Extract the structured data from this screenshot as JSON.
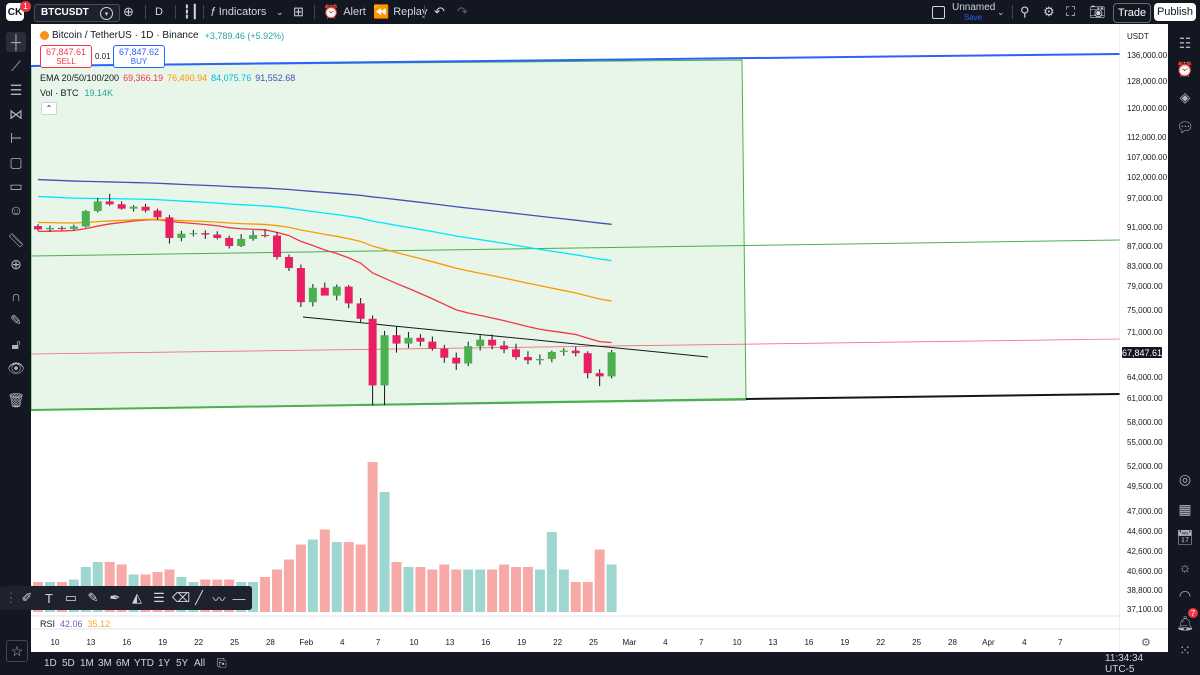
{
  "topbar": {
    "logo_text": "CK",
    "notification_count": "1",
    "symbol": "BTCUSDT",
    "interval": "D",
    "indicators_label": "Indicators",
    "alert_label": "Alert",
    "replay_label": "Replay",
    "layout_name": "Unnamed",
    "save_label": "Save",
    "trade_label": "Trade",
    "publish_label": "Publish"
  },
  "legend": {
    "title": "Bitcoin / TetherUS · 1D · Binance",
    "change": "+3,789.46 (+5.92%)",
    "sell_price": "67,847.61",
    "sell_label": "SELL",
    "spread": "0.01",
    "buy_price": "67,847.62",
    "buy_label": "BUY",
    "ema_label": "EMA 20/50/100/200",
    "ema20": "69,366.19",
    "ema50": "76,490.94",
    "ema100": "84,075.76",
    "ema200": "91,552.68",
    "vol_label": "Vol · BTC",
    "vol_value": "19.14K",
    "rsi_label": "RSI",
    "rsi_value": "42.06",
    "rsi_ma": "35.12"
  },
  "price_axis": {
    "currency": "USDT",
    "labels": [
      "136,000.00",
      "128,000.00",
      "120,000.00",
      "112,000.00",
      "107,000.00",
      "102,000.00",
      "97,000.00",
      "91,000.00",
      "87,000.00",
      "83,000.00",
      "79,000.00",
      "75,000.00",
      "71,000.00",
      "64,000.00",
      "61,000.00",
      "58,000.00",
      "55,000.00",
      "52,000.00",
      "49,500.00",
      "47,000.00",
      "44,600.00",
      "42,600.00",
      "40,600.00",
      "38,800.00",
      "37,100.00"
    ],
    "current_price": "67,847.61"
  },
  "time_axis": {
    "labels": [
      "10",
      "13",
      "16",
      "19",
      "22",
      "25",
      "28",
      "Feb",
      "4",
      "7",
      "10",
      "13",
      "16",
      "19",
      "22",
      "25",
      "Mar",
      "4",
      "7",
      "10",
      "13",
      "16",
      "19",
      "22",
      "25",
      "28",
      "Apr",
      "4",
      "7"
    ]
  },
  "bottombar": {
    "ranges": [
      "1D",
      "5D",
      "1M",
      "3M",
      "6M",
      "YTD",
      "1Y",
      "5Y",
      "All"
    ],
    "clock": "11:34:34 UTC-5"
  },
  "right_toolbar": {
    "alert_badge": "7"
  },
  "colors": {
    "up": "#26a69a",
    "down": "#f23645",
    "up_candle": "#4caf50",
    "down_candle": "#e91e63",
    "ema20": "#f23645",
    "ema50": "#ff9800",
    "ema100": "#00e5ff",
    "ema200": "#3f51b5",
    "box_fill": "#e8f5e9",
    "box_border": "#4caf50"
  },
  "chart_data": {
    "type": "candlestick",
    "symbol": "BTCUSDT",
    "interval": "1D",
    "ylim": [
      37100,
      136000
    ],
    "dates": [
      "Jan 8",
      "Jan 9",
      "Jan 10",
      "Jan 11",
      "Jan 12",
      "Jan 13",
      "Jan 14",
      "Jan 15",
      "Jan 16",
      "Jan 17",
      "Jan 18",
      "Jan 19",
      "Jan 20",
      "Jan 21",
      "Jan 22",
      "Jan 23",
      "Jan 24",
      "Jan 25",
      "Jan 26",
      "Jan 27",
      "Jan 28",
      "Jan 29",
      "Jan 30",
      "Jan 31",
      "Feb 1",
      "Feb 2",
      "Feb 3",
      "Feb 4",
      "Feb 5",
      "Feb 6",
      "Feb 7",
      "Feb 8",
      "Feb 9",
      "Feb 10",
      "Feb 11",
      "Feb 12",
      "Feb 13",
      "Feb 14",
      "Feb 15",
      "Feb 16",
      "Feb 17",
      "Feb 18",
      "Feb 19",
      "Feb 20",
      "Feb 21",
      "Feb 22",
      "Feb 23",
      "Feb 24",
      "Feb 25"
    ],
    "ohlc": [
      [
        91200,
        91600,
        90200,
        90500
      ],
      [
        90500,
        91300,
        90000,
        90800
      ],
      [
        90800,
        91200,
        90300,
        90600
      ],
      [
        90600,
        91500,
        90300,
        91100
      ],
      [
        91100,
        94500,
        90900,
        94300
      ],
      [
        94300,
        97000,
        94000,
        96300
      ],
      [
        96300,
        98000,
        95400,
        95700
      ],
      [
        95700,
        96300,
        94600,
        94800
      ],
      [
        94800,
        95500,
        94200,
        95200
      ],
      [
        95200,
        95800,
        94000,
        94400
      ],
      [
        94400,
        94800,
        92500,
        93000
      ],
      [
        93000,
        93500,
        87500,
        88700
      ],
      [
        88700,
        90200,
        88000,
        89600
      ],
      [
        89600,
        90400,
        89000,
        89700
      ],
      [
        89700,
        90300,
        88500,
        89400
      ],
      [
        89400,
        90100,
        88400,
        88700
      ],
      [
        88700,
        89200,
        86500,
        87000
      ],
      [
        87000,
        89500,
        86800,
        88500
      ],
      [
        88500,
        90300,
        88100,
        89300
      ],
      [
        89300,
        90500,
        88800,
        89200
      ],
      [
        89200,
        89900,
        84300,
        84800
      ],
      [
        84800,
        85300,
        82000,
        82600
      ],
      [
        82600,
        83300,
        75500,
        76300
      ],
      [
        76300,
        79400,
        75600,
        78700
      ],
      [
        78700,
        79700,
        77800,
        77400
      ],
      [
        77400,
        79300,
        76600,
        78900
      ],
      [
        78900,
        79200,
        75300,
        76100
      ],
      [
        76100,
        77000,
        72800,
        73400
      ],
      [
        73400,
        74000,
        60100,
        62800
      ],
      [
        62800,
        71200,
        60100,
        70500
      ],
      [
        70500,
        72000,
        67800,
        69200
      ],
      [
        69200,
        71000,
        68500,
        70100
      ],
      [
        70100,
        70700,
        68800,
        69500
      ],
      [
        69500,
        70300,
        68100,
        68400
      ],
      [
        68400,
        69000,
        66200,
        67000
      ],
      [
        67000,
        67800,
        65100,
        66100
      ],
      [
        66100,
        69500,
        65700,
        68800
      ],
      [
        68800,
        70500,
        68100,
        69800
      ],
      [
        69800,
        70600,
        68300,
        68900
      ],
      [
        68900,
        69600,
        67700,
        68300
      ],
      [
        68300,
        69200,
        66700,
        67100
      ],
      [
        67100,
        68000,
        66000,
        66600
      ],
      [
        66600,
        67500,
        65900,
        66800
      ],
      [
        66800,
        68100,
        66300,
        67900
      ],
      [
        67900,
        68500,
        67300,
        68100
      ],
      [
        68100,
        68700,
        67200,
        67700
      ],
      [
        67700,
        68000,
        63800,
        64600
      ],
      [
        64600,
        65200,
        62700,
        64100
      ],
      [
        64100,
        68200,
        63800,
        67848
      ]
    ],
    "volume": [
      12,
      12,
      12,
      13,
      18,
      20,
      20,
      19,
      15,
      15,
      16,
      17,
      14,
      12,
      13,
      13,
      13,
      12,
      12,
      14,
      17,
      21,
      27,
      29,
      33,
      28,
      28,
      27,
      60,
      48,
      20,
      18,
      18,
      17,
      19,
      17,
      17,
      17,
      17,
      19,
      18,
      18,
      17,
      32,
      17,
      12,
      12,
      25,
      19
    ],
    "ema": [
      {
        "name": "EMA 20",
        "last": 69366.19
      },
      {
        "name": "EMA 50",
        "last": 76490.94
      },
      {
        "name": "EMA 100",
        "last": 84075.76
      },
      {
        "name": "EMA 200",
        "last": 91552.68
      }
    ]
  }
}
